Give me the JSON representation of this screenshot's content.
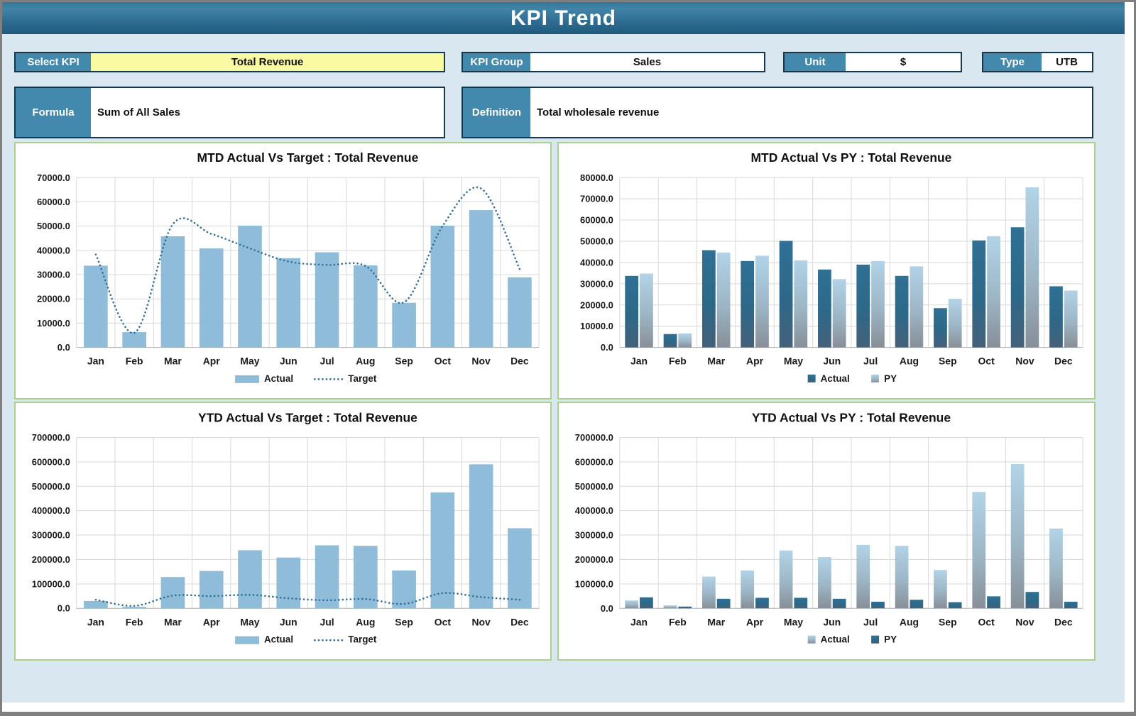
{
  "header": {
    "title": "KPI Trend"
  },
  "fields": {
    "select_kpi": {
      "label": "Select KPI",
      "value": "Total Revenue"
    },
    "kpi_group": {
      "label": "KPI Group",
      "value": "Sales"
    },
    "unit": {
      "label": "Unit",
      "value": "$"
    },
    "type": {
      "label": "Type",
      "value": "UTB"
    },
    "formula": {
      "label": "Formula",
      "value": "Sum of All Sales"
    },
    "definition": {
      "label": "Definition",
      "value": "Total wholesale revenue"
    }
  },
  "colors": {
    "sheet_bg": "#d9e7f1",
    "label_bg": "#4389ad",
    "field_border": "#17374f",
    "select_value_bg": "#fafaa2",
    "panel_border": "#a9d18e",
    "bar_light": "#8fbcd9",
    "bar_dark_gradient": [
      "#2f7095",
      "#2d6888",
      "#45617a"
    ],
    "bar_light_gradient": [
      "#b2d3e7",
      "#9db6c6",
      "#878f98"
    ],
    "target_line": "#2e6f99",
    "grid": "#d9d9d9",
    "zero_axis": "#aeaeae",
    "axis_text": "#1a1a1a"
  },
  "chart_data": [
    {
      "type": "bar",
      "title": "MTD Actual Vs Target : Total Revenue",
      "categories": [
        "Jan",
        "Feb",
        "Mar",
        "Apr",
        "May",
        "Jun",
        "Jul",
        "Aug",
        "Sep",
        "Oct",
        "Nov",
        "Dec"
      ],
      "series": [
        {
          "name": "Actual",
          "style": "flat-light",
          "values": [
            33700,
            6300,
            45800,
            40800,
            50200,
            36800,
            39200,
            33800,
            18400,
            50200,
            56600,
            28900
          ]
        }
      ],
      "line": {
        "name": "Target",
        "values": [
          38300,
          6000,
          50800,
          46800,
          40800,
          35400,
          34000,
          33600,
          18600,
          50000,
          65500,
          32300
        ]
      },
      "ylim": [
        0,
        70000
      ],
      "ytick": 10000,
      "grid": true,
      "legend_position": "bottom",
      "legend": [
        {
          "label": "Actual",
          "swatch": "bar-light"
        },
        {
          "label": "Target",
          "swatch": "dotted"
        }
      ]
    },
    {
      "type": "bar",
      "title": "MTD Actual Vs PY : Total Revenue",
      "categories": [
        "Jan",
        "Feb",
        "Mar",
        "Apr",
        "May",
        "Jun",
        "Jul",
        "Aug",
        "Sep",
        "Oct",
        "Nov",
        "Dec"
      ],
      "series": [
        {
          "name": "Actual",
          "style": "grad-dark",
          "values": [
            33700,
            6300,
            45800,
            40700,
            50200,
            36700,
            39000,
            33700,
            18500,
            50400,
            56600,
            28800
          ]
        },
        {
          "name": "PY",
          "style": "grad-light",
          "values": [
            34800,
            6600,
            44700,
            43200,
            41000,
            32200,
            40700,
            38200,
            22900,
            52400,
            75400,
            26800
          ]
        }
      ],
      "ylim": [
        0,
        80000
      ],
      "ytick": 10000,
      "grid": true,
      "legend_position": "bottom",
      "legend": [
        {
          "label": "Actual",
          "swatch": "sq-dark"
        },
        {
          "label": "PY",
          "swatch": "sq-light"
        }
      ]
    },
    {
      "type": "bar",
      "title": "YTD Actual Vs Target : Total Revenue",
      "categories": [
        "Jan",
        "Feb",
        "Mar",
        "Apr",
        "May",
        "Jun",
        "Jul",
        "Aug",
        "Sep",
        "Oct",
        "Nov",
        "Dec"
      ],
      "series": [
        {
          "name": "Actual",
          "style": "flat-light",
          "values": [
            30000,
            6000,
            128000,
            153000,
            238000,
            208000,
            258000,
            256000,
            155000,
            475000,
            590000,
            328000
          ]
        }
      ],
      "line": {
        "name": "Target",
        "values": [
          35000,
          10000,
          52000,
          50000,
          55000,
          41000,
          33000,
          38000,
          18000,
          62000,
          46000,
          35000
        ]
      },
      "ylim": [
        0,
        700000
      ],
      "ytick": 100000,
      "grid": true,
      "legend_position": "bottom",
      "legend": [
        {
          "label": "Actual",
          "swatch": "bar-light"
        },
        {
          "label": "Target",
          "swatch": "dotted"
        }
      ]
    },
    {
      "type": "bar",
      "title": "YTD Actual Vs PY : Total Revenue",
      "categories": [
        "Jan",
        "Feb",
        "Mar",
        "Apr",
        "May",
        "Jun",
        "Jul",
        "Aug",
        "Sep",
        "Oct",
        "Nov",
        "Dec"
      ],
      "series": [
        {
          "name": "Actual",
          "style": "grad-light",
          "values": [
            32000,
            12000,
            130000,
            155000,
            237000,
            210000,
            260000,
            256000,
            157000,
            477000,
            591000,
            327000
          ]
        },
        {
          "name": "PY",
          "style": "grad-dark",
          "values": [
            45000,
            7000,
            39000,
            43000,
            43000,
            39000,
            27000,
            35000,
            25000,
            49000,
            67000,
            27000
          ]
        }
      ],
      "ylim": [
        0,
        700000
      ],
      "ytick": 100000,
      "grid": true,
      "legend_position": "bottom",
      "legend": [
        {
          "label": "Actual",
          "swatch": "sq-light"
        },
        {
          "label": "PY",
          "swatch": "sq-dark"
        }
      ]
    }
  ]
}
